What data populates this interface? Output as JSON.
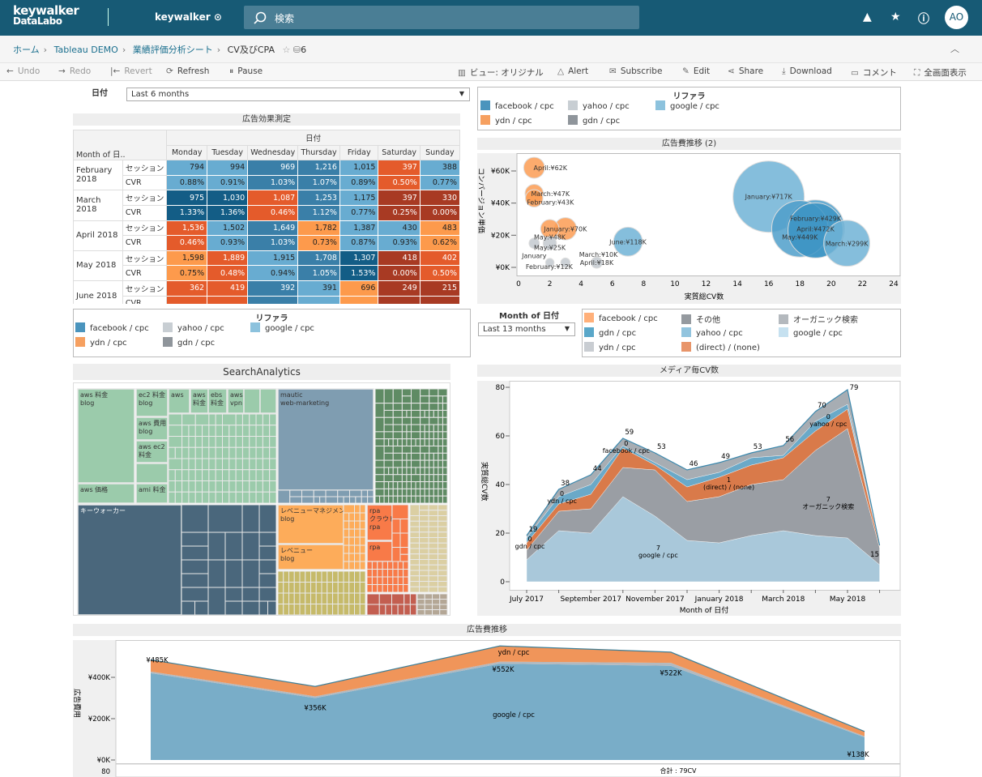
{
  "topbar": {
    "logo_line1": "keywalker",
    "logo_line2": "DataLabo",
    "site": "keywalker",
    "search_placeholder": "検索",
    "avatar": "AO"
  },
  "breadcrumb": {
    "items": [
      "ホーム",
      "Tableau DEMO",
      "業績評価分析シート"
    ],
    "current": "CV及びCPA",
    "count": "6"
  },
  "toolbar": {
    "left": [
      "Undo",
      "Redo",
      "Revert",
      "Refresh",
      "Pause"
    ],
    "right": [
      "ビュー: オリジナル",
      "Alert",
      "Subscribe",
      "Edit",
      "Share",
      "Download",
      "コメント",
      "全画面表示"
    ]
  },
  "filters": {
    "date_label": "日付",
    "date_value": "Last 6 months",
    "month_label": "Month of 日付",
    "month_value": "Last 13 months"
  },
  "legend_referrer": {
    "title": "リファラ",
    "items": [
      {
        "label": "facebook / cpc",
        "color": "#4a94bd"
      },
      {
        "label": "yahoo / cpc",
        "color": "#c8ced3"
      },
      {
        "label": "google / cpc",
        "color": "#8cc2dd"
      },
      {
        "label": "ydn / cpc",
        "color": "#f6a060"
      },
      {
        "label": "gdn / cpc",
        "color": "#8f959b"
      }
    ]
  },
  "legend_media": {
    "items": [
      {
        "label": "facebook / cpc",
        "color": "#ffb07a"
      },
      {
        "label": "その他",
        "color": "#959a9f"
      },
      {
        "label": "オーガニック検索",
        "color": "#b4b9be"
      },
      {
        "label": "gdn / cpc",
        "color": "#5aa7c9"
      },
      {
        "label": "yahoo / cpc",
        "color": "#92c4de"
      },
      {
        "label": "google / cpc",
        "color": "#c6e1f0"
      },
      {
        "label": "ydn / cpc",
        "color": "#c9cdd2"
      },
      {
        "label": "(direct) / (none)",
        "color": "#e8956a"
      }
    ]
  },
  "heatmap": {
    "title": "広告効果測定",
    "col_group": "日付",
    "row_header": "Month of 日..",
    "days": [
      "Monday",
      "Tuesday",
      "Wednesday",
      "Thursday",
      "Friday",
      "Saturday",
      "Sunday"
    ],
    "palette": {
      "D": "#135d86",
      "M": "#3a7fa8",
      "L": "#68acd1",
      "P": "#fd9a4c",
      "O": "#e45b2b",
      "R": "#a83a23"
    },
    "months": [
      {
        "month": "February 2018",
        "rows": [
          {
            "measure": "セッション",
            "cells": [
              [
                "794",
                "L"
              ],
              [
                "994",
                "L"
              ],
              [
                "969",
                "M"
              ],
              [
                "1,216",
                "M"
              ],
              [
                "1,015",
                "L"
              ],
              [
                "397",
                "O"
              ],
              [
                "388",
                "L"
              ]
            ]
          },
          {
            "measure": "CVR",
            "cells": [
              [
                "0.88%",
                "L"
              ],
              [
                "0.91%",
                "L"
              ],
              [
                "1.03%",
                "M"
              ],
              [
                "1.07%",
                "M"
              ],
              [
                "0.89%",
                "L"
              ],
              [
                "0.50%",
                "O"
              ],
              [
                "0.77%",
                "L"
              ]
            ]
          }
        ]
      },
      {
        "month": "March 2018",
        "rows": [
          {
            "measure": "セッション",
            "cells": [
              [
                "975",
                "D"
              ],
              [
                "1,030",
                "D"
              ],
              [
                "1,087",
                "O"
              ],
              [
                "1,253",
                "M"
              ],
              [
                "1,175",
                "L"
              ],
              [
                "397",
                "R"
              ],
              [
                "330",
                "R"
              ]
            ]
          },
          {
            "measure": "CVR",
            "cells": [
              [
                "1.33%",
                "D"
              ],
              [
                "1.36%",
                "D"
              ],
              [
                "0.46%",
                "O"
              ],
              [
                "1.12%",
                "M"
              ],
              [
                "0.77%",
                "L"
              ],
              [
                "0.25%",
                "R"
              ],
              [
                "0.00%",
                "R"
              ]
            ]
          }
        ]
      },
      {
        "month": "April 2018",
        "rows": [
          {
            "measure": "セッション",
            "cells": [
              [
                "1,536",
                "O"
              ],
              [
                "1,502",
                "L"
              ],
              [
                "1,649",
                "M"
              ],
              [
                "1,782",
                "P"
              ],
              [
                "1,387",
                "L"
              ],
              [
                "430",
                "L"
              ],
              [
                "483",
                "P"
              ]
            ]
          },
          {
            "measure": "CVR",
            "cells": [
              [
                "0.46%",
                "O"
              ],
              [
                "0.93%",
                "L"
              ],
              [
                "1.03%",
                "M"
              ],
              [
                "0.73%",
                "P"
              ],
              [
                "0.87%",
                "L"
              ],
              [
                "0.93%",
                "L"
              ],
              [
                "0.62%",
                "P"
              ]
            ]
          }
        ]
      },
      {
        "month": "May 2018",
        "rows": [
          {
            "measure": "セッション",
            "cells": [
              [
                "1,598",
                "P"
              ],
              [
                "1,889",
                "O"
              ],
              [
                "1,915",
                "L"
              ],
              [
                "1,708",
                "M"
              ],
              [
                "1,307",
                "D"
              ],
              [
                "418",
                "R"
              ],
              [
                "402",
                "O"
              ]
            ]
          },
          {
            "measure": "CVR",
            "cells": [
              [
                "0.75%",
                "P"
              ],
              [
                "0.48%",
                "O"
              ],
              [
                "0.94%",
                "L"
              ],
              [
                "1.05%",
                "M"
              ],
              [
                "1.53%",
                "D"
              ],
              [
                "0.00%",
                "R"
              ],
              [
                "0.50%",
                "O"
              ]
            ]
          }
        ]
      },
      {
        "month": "June 2018",
        "rows": [
          {
            "measure": "セッション",
            "cells": [
              [
                "362",
                "O"
              ],
              [
                "419",
                "O"
              ],
              [
                "392",
                "M"
              ],
              [
                "391",
                "L"
              ],
              [
                "696",
                "P"
              ],
              [
                "249",
                "R"
              ],
              [
                "215",
                "R"
              ]
            ]
          },
          {
            "measure": "CVR",
            "cells": [
              [
                "",
                "O"
              ],
              [
                "",
                "O"
              ],
              [
                "",
                "M"
              ],
              [
                "",
                "L"
              ],
              [
                "",
                "P"
              ],
              [
                "",
                "R"
              ],
              [
                "",
                "R"
              ]
            ]
          }
        ]
      }
    ]
  },
  "chart_data": [
    {
      "type": "scatter",
      "title": "広告費推移 (2)",
      "xlabel": "実質総CV数",
      "ylabel": "コンバージョン単価",
      "xlim": [
        0,
        24
      ],
      "xticks": [
        0,
        2,
        4,
        6,
        8,
        10,
        12,
        14,
        16,
        18,
        20,
        22,
        24
      ],
      "ylim": [
        0,
        65
      ],
      "yticks": [
        {
          "v": 0,
          "label": "¥0K"
        },
        {
          "v": 20,
          "label": "¥20K"
        },
        {
          "v": 40,
          "label": "¥40K"
        },
        {
          "v": 60,
          "label": "¥60K"
        }
      ],
      "points": [
        {
          "label": "April:¥62K",
          "x": 1,
          "y": 62,
          "size": 62,
          "color": "#fc9c54"
        },
        {
          "label": "March:¥47K",
          "x": 1,
          "y": 46,
          "size": 47,
          "color": "#fc9c54"
        },
        {
          "label": "February:¥43K",
          "x": 1,
          "y": 43,
          "size": 43,
          "color": "#fc9c54"
        },
        {
          "label": "May:¥48K",
          "x": 2,
          "y": 24,
          "size": 48,
          "color": "#fc9c54"
        },
        {
          "label": "January:¥70K",
          "x": 3,
          "y": 24,
          "size": 70,
          "color": "#fc9c54"
        },
        {
          "label": "January",
          "x": 1,
          "y": 15,
          "size": 15,
          "color": "#c3c9cf"
        },
        {
          "label": "May:¥25K",
          "x": 2,
          "y": 15,
          "size": 25,
          "color": "#c3c9cf"
        },
        {
          "label": "March:¥10K",
          "x": 2,
          "y": 3,
          "size": 10,
          "color": "#c3c9cf"
        },
        {
          "label": "February:¥12K",
          "x": 3,
          "y": 3,
          "size": 12,
          "color": "#c3c9cf"
        },
        {
          "label": "April:¥18K",
          "x": 5,
          "y": 3,
          "size": 18,
          "color": "#c3c9cf"
        },
        {
          "label": "June:¥118K",
          "x": 7,
          "y": 16,
          "size": 118,
          "color": "#70b3d6"
        },
        {
          "label": "January:¥717K",
          "x": 16,
          "y": 44,
          "size": 717,
          "color": "#70b3d6"
        },
        {
          "label": "May:¥449K",
          "x": 18,
          "y": 24,
          "size": 449,
          "color": "#4f9fca"
        },
        {
          "label": "April:¥472K",
          "x": 19,
          "y": 24,
          "size": 472,
          "color": "#4f9fca"
        },
        {
          "label": "February:¥429K",
          "x": 19,
          "y": 23,
          "size": 429,
          "color": "#3d94c4"
        },
        {
          "label": "March:¥299K",
          "x": 21,
          "y": 15,
          "size": 299,
          "color": "#70b3d6"
        }
      ]
    },
    {
      "type": "area",
      "title": "メディア毎CV数",
      "xlabel": "Month of 日付",
      "ylabel": "実質総CV数",
      "ylim": [
        0,
        80
      ],
      "yticks": [
        0,
        20,
        40,
        60,
        80
      ],
      "x": [
        "July 2017",
        "August 2017",
        "September 2017",
        "October 2017",
        "November 2017",
        "December 2017",
        "January 2018",
        "February 2018",
        "March 2018",
        "April 2018",
        "May 2018",
        "June 2018"
      ],
      "xtick_labels": [
        "July 2017",
        "September 2017",
        "November 2017",
        "January 2018",
        "March 2018",
        "May 2018"
      ],
      "series": [
        {
          "name": "google / cpc",
          "color": "#a9c8da",
          "values": [
            9,
            21,
            20,
            35,
            27,
            17,
            16,
            19,
            21,
            19,
            18,
            7
          ]
        },
        {
          "name": "オーガニック検索",
          "color": "#9a9ea4",
          "values": [
            4,
            8,
            10,
            12,
            19,
            16,
            19,
            21,
            21,
            35,
            45,
            7
          ]
        },
        {
          "name": "(direct) / (none)",
          "color": "#d97a4a",
          "values": [
            3,
            3,
            6,
            8,
            2,
            6,
            8,
            8,
            9,
            8,
            8,
            1
          ]
        },
        {
          "name": "yahoo / cpc",
          "color": "#6aa9c8",
          "values": [
            2,
            3,
            4,
            1,
            1,
            3,
            2,
            3,
            1,
            4,
            2,
            0
          ]
        },
        {
          "name": "その他",
          "color": "#a7adb3",
          "values": [
            1,
            3,
            4,
            3,
            4,
            4,
            4,
            2,
            4,
            4,
            6,
            0
          ]
        }
      ],
      "totals": [
        "19",
        "38",
        "44",
        "59",
        "53",
        "46",
        "49",
        "53",
        "56",
        "70",
        "79",
        "15"
      ],
      "annotations": [
        {
          "text": "7",
          "sub": "google / cpc",
          "x": 4,
          "y": 10
        },
        {
          "text": "1",
          "sub": "(direct) / (none)",
          "x": 6.2,
          "y": 38
        },
        {
          "text": "7",
          "sub": "オーガニック検索",
          "x": 9.3,
          "y": 30
        },
        {
          "text": "0",
          "sub": "yahoo / cpc",
          "x": 9.3,
          "y": 64
        },
        {
          "text": "0",
          "sub": "facebook / cpc",
          "x": 3,
          "y": 58
        },
        {
          "text": "0",
          "sub": "ydn / cpc",
          "x": 1,
          "y": 34
        },
        {
          "text": "0",
          "sub": "gdn / cpc",
          "x": 0,
          "y": 17
        }
      ]
    },
    {
      "type": "area",
      "title": "広告費推移",
      "ylabel": "広告費用",
      "ylim": [
        0,
        560
      ],
      "yticks": [
        {
          "v": 0,
          "label": "¥0K"
        },
        {
          "v": 200,
          "label": "¥200K"
        },
        {
          "v": 400,
          "label": "¥400K"
        }
      ],
      "series": [
        {
          "name": "google / cpc",
          "color": "#79adc8",
          "values": [
            420,
            300,
            466,
            456,
            110
          ]
        },
        {
          "name": "yahoo / cpc",
          "color": "#b3b9bf",
          "values": [
            8,
            8,
            10,
            14,
            5
          ]
        },
        {
          "name": "ydn / cpc",
          "color": "#f0955a",
          "values": [
            57,
            48,
            76,
            52,
            23
          ]
        }
      ],
      "point_labels": [
        "¥485K",
        "¥356K",
        "¥552K",
        "¥522K",
        "¥138K"
      ],
      "sub_chart": {
        "ytick": "80",
        "label": "合計 : 79CV"
      }
    }
  ],
  "treemap": {
    "title": "SearchAnalytics",
    "groups": [
      {
        "color": "#9bcbab",
        "tiles": [
          "aws 料金\nblog",
          "aws 価格",
          "ec2 料金\nblog",
          "aws 費用\nblog",
          "aws ec2\n料金",
          "",
          "ami 料金",
          "aws",
          "aws\n料金",
          "ebs\n料金",
          "aws\nvpn",
          "",
          ""
        ]
      },
      {
        "color": "#4a677c",
        "tiles": [
          "キーウォーカー"
        ]
      },
      {
        "color": "#7f9db1",
        "tiles": [
          "mautic\nweb-marketing"
        ]
      },
      {
        "color": "#5f8b64",
        "tiles": []
      },
      {
        "color": "#fdac5a",
        "tiles": [
          "レベニューマネジメント\nblog",
          "レベニュー\nblog"
        ]
      },
      {
        "color": "#c6ba6a",
        "tiles": []
      },
      {
        "color": "#f87a48",
        "tiles": [
          "rpa\nクラウド\nrpa",
          "rpa"
        ]
      },
      {
        "color": "#dbcfa3",
        "tiles": []
      },
      {
        "color": "#c35e50",
        "tiles": []
      },
      {
        "color": "#b4a796",
        "tiles": []
      }
    ]
  }
}
